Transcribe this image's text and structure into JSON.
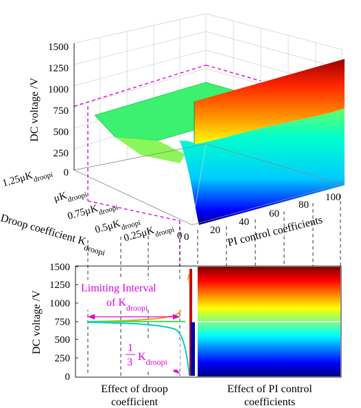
{
  "chart_data": [
    {
      "type": "surface-3d",
      "zlabel": "DC voltage /V",
      "xlabel": "PI control coefficients",
      "ylabel_prefix": "Droop coefficient K",
      "ylabel_sub": "droopi",
      "z_ticks": [
        "0",
        "250",
        "500",
        "750",
        "1000",
        "1250",
        "1500"
      ],
      "zlim": [
        0,
        1500
      ],
      "x_ticks": [
        "20",
        "40",
        "60",
        "80",
        "100"
      ],
      "x_zero": "0",
      "xlim": [
        0,
        100
      ],
      "y_tick_prefix": [
        "1.25μK",
        "μK",
        "0.75μK",
        "0.5μK",
        "0.25μK"
      ],
      "y_tick_sub": "droopi",
      "y_zero": "0",
      "surface_plateau_value": 750,
      "surface_max_value": 1400,
      "surface_min_value": 0,
      "colormap": "jet"
    },
    {
      "type": "heatmap",
      "ylabel": "DC voltage /V",
      "y_ticks": [
        "0",
        "250",
        "500",
        "750",
        "1000",
        "1250",
        "1500"
      ],
      "ylim": [
        0,
        1500
      ],
      "annotation_interval_line1": "Limiting Interval",
      "annotation_interval_line2": "of K",
      "annotation_interval_sub": "droopi",
      "annotation_fraction_num": "1",
      "annotation_fraction_den": "3",
      "annotation_fraction_k": "K",
      "annotation_fraction_sub": "droopi",
      "category_left_line1": "Effect of droop",
      "category_left_line2": "coefficient",
      "category_right_line1": "Effect of PI control",
      "category_right_line2": "coefficients",
      "reference_line_value": 750,
      "colormap": "jet"
    }
  ]
}
